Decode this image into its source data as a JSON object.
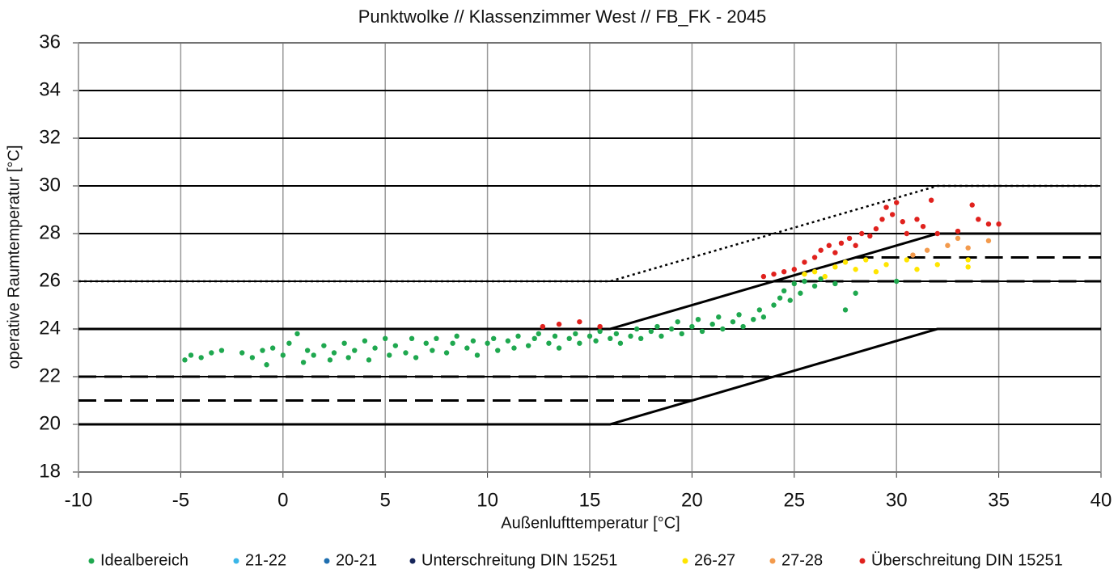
{
  "chart_data": {
    "type": "scatter",
    "title": "Punktwolke // Klassenzimmer West // FB_FK - 2045",
    "x_label": "Außenlufttemperatur  [°C]",
    "y_label": "operative Raumtemperatur  [°C]",
    "xlim": [
      -10,
      40
    ],
    "ylim": [
      18,
      36
    ],
    "xticks": [
      -10,
      -5,
      0,
      5,
      10,
      15,
      20,
      25,
      30,
      35,
      40
    ],
    "yticks": [
      18,
      20,
      22,
      24,
      26,
      28,
      30,
      32,
      34,
      36
    ],
    "grid": true,
    "legend": "bottom",
    "series": [
      {
        "name": "Idealbereich",
        "color": "#1fa84f",
        "x": [
          -4.8,
          -4.5,
          -4,
          -3.5,
          -3,
          -2,
          -1.5,
          -1,
          -0.8,
          -0.5,
          0,
          0.3,
          0.7,
          1,
          1.2,
          1.5,
          2,
          2.3,
          2.5,
          3,
          3.2,
          3.5,
          4,
          4.2,
          4.5,
          5,
          5.2,
          5.5,
          6,
          6.3,
          6.5,
          7,
          7.3,
          7.5,
          8,
          8.3,
          8.5,
          9,
          9.3,
          9.5,
          10,
          10.3,
          10.5,
          11,
          11.3,
          11.5,
          12,
          12.3,
          12.5,
          13,
          13.3,
          13.5,
          14,
          14.3,
          14.5,
          15,
          15.3,
          15.5,
          16,
          16.3,
          16.5,
          17,
          17.3,
          17.5,
          18,
          18.3,
          18.5,
          19,
          19.3,
          19.5,
          20,
          20.3,
          20.5,
          21,
          21.3,
          21.5,
          22,
          22.3,
          22.5,
          23,
          23.3,
          23.5,
          24,
          24.3,
          24.5,
          24.8,
          25,
          25.3,
          25.5,
          26,
          26.3,
          27,
          27.5,
          28,
          30
        ],
        "values": [
          22.7,
          22.9,
          22.8,
          23.0,
          23.1,
          23.0,
          22.8,
          23.1,
          22.5,
          23.2,
          22.9,
          23.4,
          23.8,
          22.6,
          23.1,
          22.9,
          23.3,
          22.7,
          23.0,
          23.4,
          22.8,
          23.1,
          23.5,
          22.7,
          23.2,
          23.6,
          22.9,
          23.3,
          23.0,
          23.6,
          22.8,
          23.4,
          23.1,
          23.6,
          23.0,
          23.4,
          23.7,
          23.2,
          23.5,
          22.9,
          23.4,
          23.6,
          23.1,
          23.5,
          23.2,
          23.7,
          23.3,
          23.6,
          23.8,
          23.4,
          23.7,
          23.2,
          23.6,
          23.8,
          23.4,
          23.7,
          23.5,
          23.9,
          23.6,
          23.8,
          23.4,
          23.7,
          24.0,
          23.6,
          23.9,
          24.1,
          23.7,
          24.0,
          24.3,
          23.8,
          24.1,
          24.4,
          23.9,
          24.2,
          24.5,
          24.0,
          24.3,
          24.6,
          24.1,
          24.4,
          24.8,
          24.5,
          25.0,
          25.3,
          25.6,
          25.2,
          25.9,
          25.5,
          26.0,
          25.8,
          26.1,
          25.9,
          24.8,
          25.5,
          26.0
        ]
      },
      {
        "name": "21-22",
        "color": "#3ab6e8",
        "x": [],
        "values": []
      },
      {
        "name": "20-21",
        "color": "#1f6fb0",
        "x": [],
        "values": []
      },
      {
        "name": "Unterschreitung DIN 15251",
        "color": "#16255a",
        "x": [],
        "values": []
      },
      {
        "name": "26-27",
        "color": "#ffe500",
        "x": [
          25.5,
          26,
          26.5,
          27,
          27.5,
          28,
          28.5,
          29,
          29.5,
          30.5,
          31,
          32,
          33.5,
          33.5
        ],
        "values": [
          26.3,
          26.4,
          26.2,
          26.6,
          26.8,
          26.5,
          26.9,
          26.4,
          26.7,
          26.9,
          26.5,
          26.7,
          26.6,
          26.9
        ]
      },
      {
        "name": "27-28",
        "color": "#f39a4c",
        "x": [
          30.8,
          31.5,
          32.5,
          33,
          33.5,
          34.5
        ],
        "values": [
          27.1,
          27.3,
          27.5,
          27.8,
          27.4,
          27.7
        ]
      },
      {
        "name": "Überschreitung DIN 15251",
        "color": "#e0211d",
        "x": [
          12.7,
          13.5,
          14.5,
          15.5,
          23.5,
          24,
          24.5,
          25,
          25.5,
          26,
          26.3,
          26.7,
          27,
          27.3,
          27.7,
          28,
          28.3,
          28.7,
          29,
          29.3,
          29.5,
          29.8,
          30,
          30.3,
          30.5,
          31,
          31.3,
          31.7,
          32,
          33,
          33.7,
          34,
          34.5,
          35
        ],
        "values": [
          24.1,
          24.2,
          24.3,
          24.1,
          26.2,
          26.3,
          26.4,
          26.5,
          26.8,
          27.0,
          27.3,
          27.5,
          27.2,
          27.6,
          27.8,
          27.5,
          28.0,
          27.9,
          28.2,
          28.6,
          29.1,
          28.8,
          29.3,
          28.5,
          28.0,
          28.6,
          28.3,
          29.4,
          28.0,
          28.1,
          29.2,
          28.6,
          28.4,
          28.4
        ]
      }
    ],
    "reference_lines": [
      {
        "style": "solid",
        "x": [
          -10,
          16,
          32,
          40
        ],
        "y": [
          20,
          20,
          24,
          24
        ]
      },
      {
        "style": "solid",
        "x": [
          -10,
          16,
          32,
          40
        ],
        "y": [
          24,
          24,
          28,
          28
        ]
      },
      {
        "style": "dotted",
        "x": [
          -10,
          16,
          32,
          40
        ],
        "y": [
          26,
          26,
          30,
          30
        ]
      },
      {
        "style": "dashed",
        "x": [
          -10,
          24
        ],
        "y": [
          22,
          22
        ]
      },
      {
        "style": "dashed",
        "x": [
          -10,
          20
        ],
        "y": [
          21,
          21
        ]
      },
      {
        "style": "dashed",
        "x": [
          24,
          40
        ],
        "y": [
          26,
          26
        ]
      },
      {
        "style": "dashed",
        "x": [
          28,
          40
        ],
        "y": [
          27,
          27
        ]
      }
    ]
  }
}
